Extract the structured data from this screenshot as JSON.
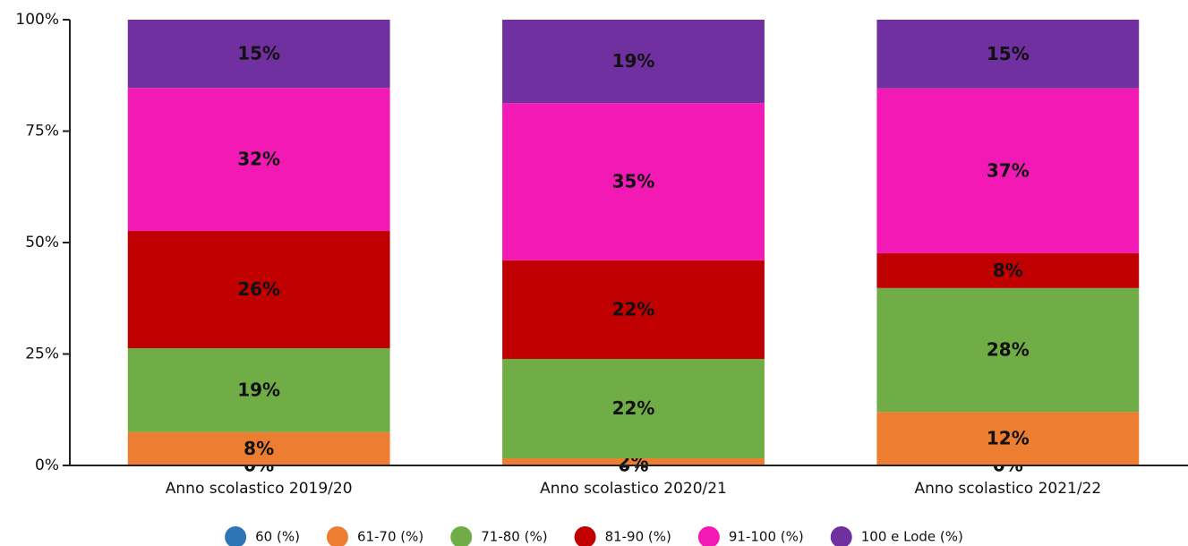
{
  "chart_data": {
    "type": "stacked_bar",
    "categories": [
      "Anno scolastico 2019/20",
      "Anno scolastico 2020/21",
      "Anno scolastico 2021/22"
    ],
    "series": [
      {
        "name": "60 (%)",
        "color": "#2e75b6",
        "values": [
          0,
          0,
          0
        ],
        "value_labels": [
          "0%",
          "0%",
          "0%"
        ]
      },
      {
        "name": "61-70 (%)",
        "color": "#ed7d31",
        "values": [
          7.5,
          1.6,
          12.0
        ],
        "value_labels": [
          "8%",
          "2%",
          "12%"
        ]
      },
      {
        "name": "71-80 (%)",
        "color": "#70ad47",
        "values": [
          18.8,
          22.3,
          27.8
        ],
        "value_labels": [
          "19%",
          "22%",
          "28%"
        ]
      },
      {
        "name": "81-90 (%)",
        "color": "#c00000",
        "values": [
          26.3,
          22.1,
          7.8
        ],
        "value_labels": [
          "26%",
          "22%",
          "8%"
        ]
      },
      {
        "name": "91-100 (%)",
        "color": "#f319b4",
        "values": [
          32.1,
          35.3,
          37.0
        ],
        "value_labels": [
          "32%",
          "35%",
          "37%"
        ]
      },
      {
        "name": "100 e Lode (%)",
        "color": "#7030a0",
        "values": [
          15.3,
          18.7,
          15.4
        ],
        "value_labels": [
          "15%",
          "19%",
          "15%"
        ]
      }
    ],
    "ylim": [
      0,
      100
    ],
    "yticks": [
      {
        "value": 0,
        "label": "0%"
      },
      {
        "value": 25,
        "label": "25%"
      },
      {
        "value": 50,
        "label": "50%"
      },
      {
        "value": 75,
        "label": "75%"
      },
      {
        "value": 100,
        "label": "100%"
      }
    ],
    "legend": "bottom"
  }
}
